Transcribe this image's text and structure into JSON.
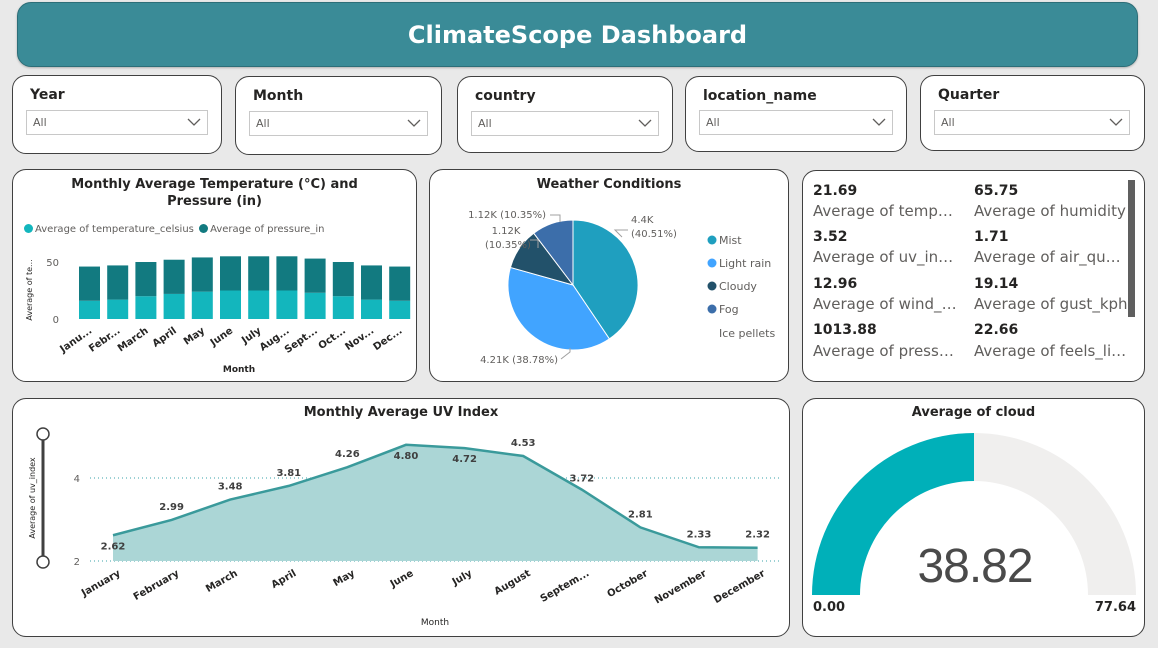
{
  "dashboard": {
    "title": "ClimateScope Dashboard"
  },
  "slicers": [
    {
      "title": "Year",
      "value": "All"
    },
    {
      "title": "Month",
      "value": "All"
    },
    {
      "title": "country",
      "value": "All"
    },
    {
      "title": "location_name",
      "value": "All"
    },
    {
      "title": "Quarter",
      "value": "All"
    }
  ],
  "temp_chart": {
    "title_line1": "Monthly Average Temperature (°C) and",
    "title_line2": "Pressure (in)",
    "legend": [
      "Average of temperature_celsius",
      "Average of pressure_in"
    ],
    "ylabel": "Average of te...",
    "xlabel": "Month",
    "yticks": [
      "0",
      "50"
    ],
    "colors": {
      "temperature": "#13b6bd",
      "pressure": "#127a80"
    }
  },
  "weather_chart": {
    "title": "Weather Conditions",
    "legend": [
      "Mist",
      "Light rain",
      "Cloudy",
      "Fog",
      "Ice pellets"
    ],
    "legend_colors": [
      "#1f9fbf",
      "#41a4ff",
      "#22516a",
      "#3c6eaa",
      "#c0c0c0"
    ],
    "labels": {
      "mist_a": "4.4K",
      "mist_b": "(40.51%)",
      "rain": "4.21K (38.78%)",
      "cloudy_a": "1.12K",
      "cloudy_b": "(10.35%)",
      "fog": "1.12K (10.35%)"
    }
  },
  "kpis": [
    {
      "value": "21.69",
      "label": "Average of temper..."
    },
    {
      "value": "65.75",
      "label": "Average of humidity"
    },
    {
      "value": "3.52",
      "label": "Average of uv_index"
    },
    {
      "value": "1.71",
      "label": "Average of air_qualit..."
    },
    {
      "value": "12.96",
      "label": "Average of wind_k..."
    },
    {
      "value": "19.14",
      "label": "Average of gust_kph"
    },
    {
      "value": "1013.88",
      "label": "Average of pressur..."
    },
    {
      "value": "22.66",
      "label": "Average of feels_like_..."
    }
  ],
  "uv_chart": {
    "title": "Monthly Average UV Index",
    "ylabel": "Average of uv_index",
    "xlabel": "Month",
    "yticks": [
      "2",
      "4"
    ]
  },
  "gauge": {
    "title": "Average of cloud",
    "value": "38.82",
    "min": "0.00",
    "max": "77.64",
    "fill_fraction": 0.5,
    "colors": {
      "fill": "#00b0b9",
      "track": "#f0efee"
    }
  },
  "chart_data": [
    {
      "type": "bar",
      "title": "Monthly Average Temperature (°C) and Pressure (in)",
      "xlabel": "Month",
      "ylabel": "Average of te...",
      "categories": [
        "Janu...",
        "Febr...",
        "March",
        "April",
        "May",
        "June",
        "July",
        "Aug...",
        "Sept...",
        "Oct...",
        "Nov...",
        "Dec..."
      ],
      "stacked": true,
      "series": [
        {
          "name": "Average of temperature_celsius",
          "values": [
            16,
            17,
            20,
            22,
            24,
            25,
            25,
            25,
            23,
            20,
            17,
            16
          ]
        },
        {
          "name": "Average of pressure_in",
          "values": [
            30,
            30,
            30,
            30,
            30,
            30,
            30,
            30,
            30,
            30,
            30,
            30
          ]
        }
      ],
      "ylim": [
        0,
        60
      ]
    },
    {
      "type": "pie",
      "title": "Weather Conditions",
      "categories": [
        "Mist",
        "Light rain",
        "Cloudy",
        "Fog"
      ],
      "values": [
        4400,
        4210,
        1120,
        1120
      ],
      "percents": [
        40.51,
        38.78,
        10.35,
        10.35
      ]
    },
    {
      "type": "area",
      "title": "Monthly Average UV Index",
      "xlabel": "Month",
      "ylabel": "Average of uv_index",
      "categories": [
        "January",
        "February",
        "March",
        "April",
        "May",
        "June",
        "July",
        "August",
        "Septem...",
        "October",
        "November",
        "December"
      ],
      "values": [
        2.62,
        2.99,
        3.48,
        3.81,
        4.26,
        4.8,
        4.72,
        4.53,
        3.72,
        2.81,
        2.33,
        2.32
      ],
      "ylim": [
        2,
        5
      ]
    }
  ]
}
